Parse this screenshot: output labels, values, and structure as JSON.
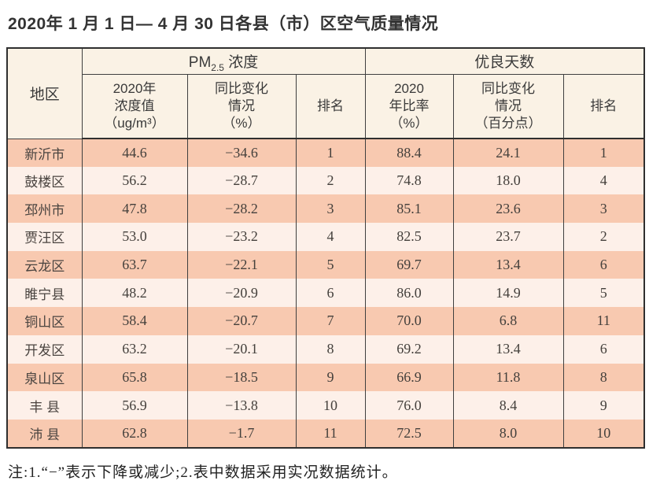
{
  "page": {
    "title": "2020年 1 月 1 日— 4 月 30 日各县（市）区空气质量情况",
    "note": "注:1.“−”表示下降或减少;2.表中数据采用实况数据统计。"
  },
  "colors": {
    "header_bg": "#faf2e5",
    "row_odd_bg": "#f8c9b0",
    "row_even_bg": "#fdf0e9",
    "border": "#2f2f2f",
    "text": "#3c3c3c"
  },
  "table": {
    "region_header": "地区",
    "pm_group": {
      "prefix": "PM",
      "sub": "2.5",
      "suffix": " 浓度"
    },
    "good_group": "优良天数",
    "sub_headers": {
      "pm_value": "2020年\n浓度值\n（ug/m³）",
      "pm_change": "同比变化\n情况\n（%）",
      "pm_rank": "排名",
      "good_rate": "2020\n年比率\n（%）",
      "good_change": "同比变化\n情况\n（百分点）",
      "good_rank": "排名"
    },
    "rows": [
      {
        "region": "新沂市",
        "pm_value": "44.6",
        "pm_change": "−34.6",
        "pm_rank": "1",
        "good_rate": "88.4",
        "good_change": "24.1",
        "good_rank": "1"
      },
      {
        "region": "鼓楼区",
        "pm_value": "56.2",
        "pm_change": "−28.7",
        "pm_rank": "2",
        "good_rate": "74.8",
        "good_change": "18.0",
        "good_rank": "4"
      },
      {
        "region": "邳州市",
        "pm_value": "47.8",
        "pm_change": "−28.2",
        "pm_rank": "3",
        "good_rate": "85.1",
        "good_change": "23.6",
        "good_rank": "3"
      },
      {
        "region": "贾汪区",
        "pm_value": "53.0",
        "pm_change": "−23.2",
        "pm_rank": "4",
        "good_rate": "82.5",
        "good_change": "23.7",
        "good_rank": "2"
      },
      {
        "region": "云龙区",
        "pm_value": "63.7",
        "pm_change": "−22.1",
        "pm_rank": "5",
        "good_rate": "69.7",
        "good_change": "13.4",
        "good_rank": "6"
      },
      {
        "region": "睢宁县",
        "pm_value": "48.2",
        "pm_change": "−20.9",
        "pm_rank": "6",
        "good_rate": "86.0",
        "good_change": "14.9",
        "good_rank": "5"
      },
      {
        "region": "铜山区",
        "pm_value": "58.4",
        "pm_change": "−20.7",
        "pm_rank": "7",
        "good_rate": "70.0",
        "good_change": "6.8",
        "good_rank": "11"
      },
      {
        "region": "开发区",
        "pm_value": "63.2",
        "pm_change": "−20.1",
        "pm_rank": "8",
        "good_rate": "69.2",
        "good_change": "13.4",
        "good_rank": "6"
      },
      {
        "region": "泉山区",
        "pm_value": "65.8",
        "pm_change": "−18.5",
        "pm_rank": "9",
        "good_rate": "66.9",
        "good_change": "11.8",
        "good_rank": "8"
      },
      {
        "region": "丰 县",
        "pm_value": "56.9",
        "pm_change": "−13.8",
        "pm_rank": "10",
        "good_rate": "76.0",
        "good_change": "8.4",
        "good_rank": "9"
      },
      {
        "region": "沛 县",
        "pm_value": "62.8",
        "pm_change": "−1.7",
        "pm_rank": "11",
        "good_rate": "72.5",
        "good_change": "8.0",
        "good_rank": "10"
      }
    ]
  }
}
